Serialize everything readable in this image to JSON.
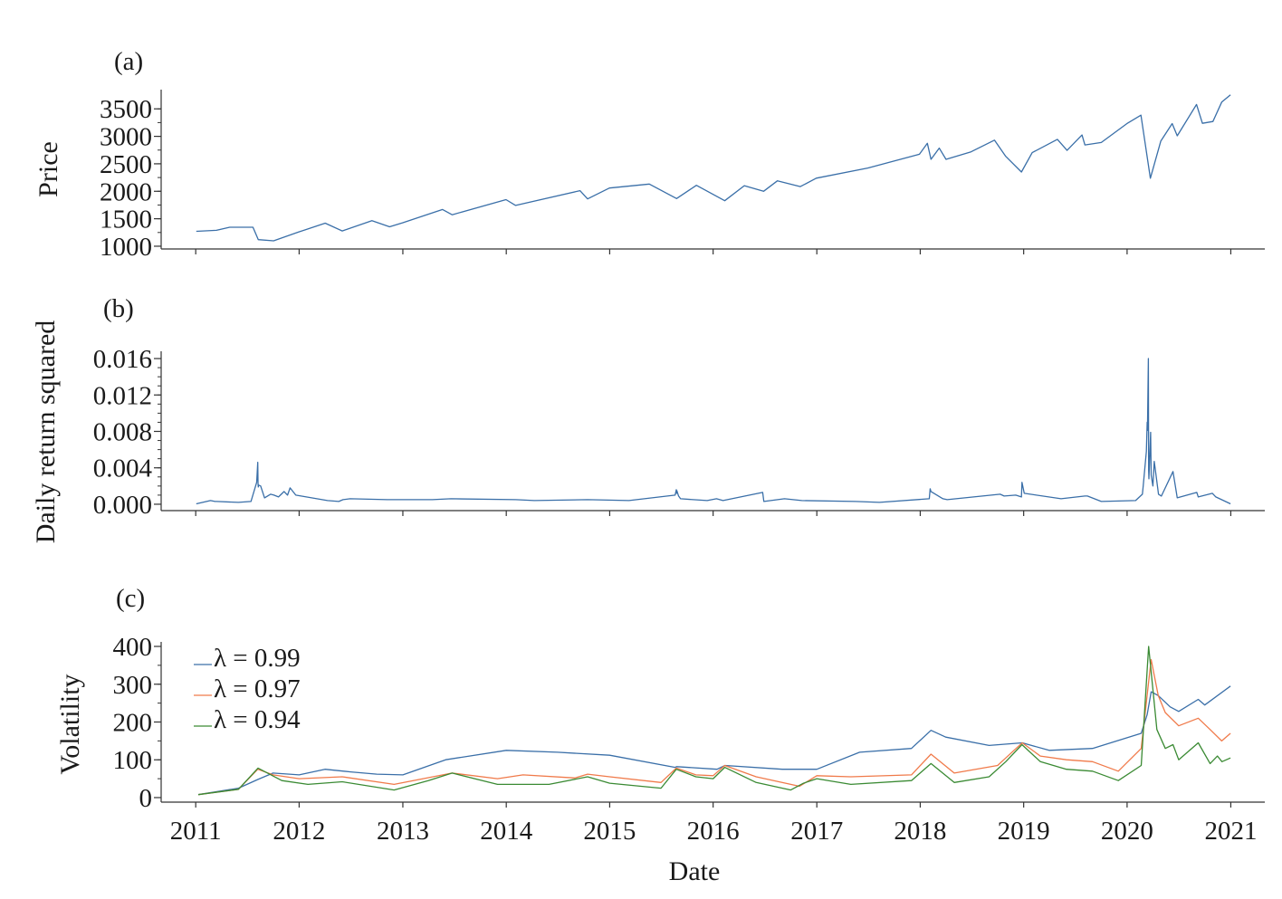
{
  "chart_data": [
    {
      "panel_label": "(a)",
      "type": "line",
      "title": "",
      "xlabel": "",
      "ylabel": "Price",
      "ylim": [
        950,
        3850
      ],
      "yticks": [
        "3500",
        "3000",
        "2500",
        "2000",
        "1500",
        "1000"
      ],
      "ytick_values": [
        3500,
        3000,
        2500,
        2000,
        1500,
        1000
      ],
      "grid": false,
      "series": [
        {
          "color": "#3a6fa8",
          "x": [
            "2011-01-03",
            "2011-03-15",
            "2011-05-01",
            "2011-07-22",
            "2011-08-10",
            "2011-10-03",
            "2011-12-30",
            "2012-04-02",
            "2012-06-01",
            "2012-09-14",
            "2012-11-15",
            "2012-12-31",
            "2013-05-21",
            "2013-06-24",
            "2013-12-31",
            "2014-02-03",
            "2014-09-18",
            "2014-10-15",
            "2014-12-31",
            "2015-05-21",
            "2015-08-25",
            "2015-11-03",
            "2016-02-11",
            "2016-04-20",
            "2016-06-27",
            "2016-08-15",
            "2016-11-04",
            "2016-12-30",
            "2017-06-30",
            "2017-12-29",
            "2018-01-26",
            "2018-02-08",
            "2018-03-09",
            "2018-04-02",
            "2018-06-29",
            "2018-09-20",
            "2018-10-29",
            "2018-12-24",
            "2019-01-31",
            "2019-04-30",
            "2019-06-03",
            "2019-07-26",
            "2019-08-05",
            "2019-10-02",
            "2019-12-31",
            "2020-02-19",
            "2020-03-23",
            "2020-04-29",
            "2020-06-08",
            "2020-06-26",
            "2020-09-02",
            "2020-09-23",
            "2020-10-30",
            "2020-11-30",
            "2020-12-31"
          ],
          "y": [
            1272,
            1290,
            1345,
            1345,
            1120,
            1099,
            1258,
            1419,
            1278,
            1466,
            1353,
            1426,
            1669,
            1573,
            1848,
            1742,
            2011,
            1862,
            2059,
            2131,
            1867,
            2109,
            1829,
            2102,
            2000,
            2190,
            2085,
            2239,
            2423,
            2674,
            2873,
            2581,
            2786,
            2581,
            2718,
            2930,
            2641,
            2351,
            2704,
            2946,
            2744,
            3025,
            2844,
            2887,
            3231,
            3386,
            2237,
            2912,
            3232,
            3009,
            3580,
            3237,
            3270,
            3622,
            3756
          ]
        }
      ]
    },
    {
      "panel_label": "(b)",
      "type": "line",
      "title": "",
      "xlabel": "",
      "ylabel": "Daily return squared",
      "ylim": [
        -0.0007,
        0.0168
      ],
      "yticks": [
        "0.016",
        "0.012",
        "0.008",
        "0.004",
        "0.000"
      ],
      "ytick_values": [
        0.016,
        0.012,
        0.008,
        0.004,
        0.0
      ],
      "grid": false,
      "series": [
        {
          "color": "#3a6fa8",
          "x": [
            "2011-01-03",
            "2011-02-22",
            "2011-03-10",
            "2011-03-16",
            "2011-06-01",
            "2011-07-15",
            "2011-08-04",
            "2011-08-08",
            "2011-08-09",
            "2011-08-10",
            "2011-08-11",
            "2011-08-18",
            "2011-09-01",
            "2011-09-22",
            "2011-10-04",
            "2011-10-20",
            "2011-11-09",
            "2011-11-21",
            "2011-11-30",
            "2011-12-20",
            "2012-04-10",
            "2012-05-20",
            "2012-06-04",
            "2012-06-29",
            "2012-11-07",
            "2013-04-15",
            "2013-06-20",
            "2014-02-03",
            "2014-04-10",
            "2014-10-15",
            "2015-03-10",
            "2015-08-20",
            "2015-08-24",
            "2015-08-25",
            "2015-08-26",
            "2015-09-01",
            "2015-09-08",
            "2015-12-11",
            "2016-01-13",
            "2016-02-05",
            "2016-06-24",
            "2016-06-28",
            "2016-09-09",
            "2016-11-09",
            "2017-05-17",
            "2017-08-10",
            "2018-02-02",
            "2018-02-05",
            "2018-02-08",
            "2018-03-22",
            "2018-04-06",
            "2018-10-10",
            "2018-10-24",
            "2018-12-04",
            "2018-12-24",
            "2018-12-26",
            "2019-01-03",
            "2019-05-13",
            "2019-08-05",
            "2019-08-14",
            "2019-10-02",
            "2020-01-31",
            "2020-02-24",
            "2020-02-27",
            "2020-03-09",
            "2020-03-12",
            "2020-03-13",
            "2020-03-16",
            "2020-03-17",
            "2020-03-18",
            "2020-03-24",
            "2020-03-26",
            "2020-04-01",
            "2020-04-06",
            "2020-04-21",
            "2020-05-01",
            "2020-06-11",
            "2020-06-26",
            "2020-09-03",
            "2020-09-08",
            "2020-10-28",
            "2020-11-09",
            "2020-12-31"
          ],
          "y": [
            5e-05,
            0.0004,
            0.0003,
            0.0003,
            0.0002,
            0.0003,
            0.0024,
            0.0046,
            0.0023,
            0.0019,
            0.0021,
            0.002,
            0.0007,
            0.0011,
            0.001,
            0.0008,
            0.0014,
            0.001,
            0.0018,
            0.001,
            0.0004,
            0.0003,
            0.0005,
            0.0006,
            0.0005,
            0.0005,
            0.0006,
            0.0005,
            0.0004,
            0.0005,
            0.0004,
            0.001,
            0.0016,
            0.0012,
            0.0015,
            0.0009,
            0.0006,
            0.0004,
            0.0006,
            0.0004,
            0.0013,
            0.0003,
            0.0006,
            0.0004,
            0.0003,
            0.0002,
            0.0006,
            0.0017,
            0.0014,
            0.0006,
            0.0005,
            0.0011,
            0.0009,
            0.001,
            0.0008,
            0.0024,
            0.0012,
            0.0006,
            0.0009,
            0.0009,
            0.0003,
            0.0004,
            0.0011,
            0.002,
            0.0058,
            0.009,
            0.0081,
            0.016,
            0.0037,
            0.0028,
            0.0079,
            0.0032,
            0.002,
            0.0047,
            0.0011,
            0.0009,
            0.0036,
            0.0007,
            0.0013,
            0.0008,
            0.0012,
            0.0008,
            5e-05
          ]
        }
      ]
    },
    {
      "panel_label": "(c)",
      "type": "line",
      "title": "",
      "xlabel": "Date",
      "ylabel": "Volatility",
      "ylim": [
        -12,
        412
      ],
      "yticks": [
        "400",
        "300",
        "200",
        "100",
        "0"
      ],
      "ytick_values": [
        400,
        300,
        200,
        100,
        0
      ],
      "xticks": [
        "2011",
        "2012",
        "2013",
        "2014",
        "2015",
        "2016",
        "2017",
        "2018",
        "2019",
        "2020",
        "2021"
      ],
      "xlim": [
        "2010-09-01",
        "2021-05-01"
      ],
      "grid": false,
      "legend_position": "top-left",
      "series": [
        {
          "name": "λ = 0.99",
          "color": "#3a6fa8",
          "x": [
            "2011-01-10",
            "2011-06-01",
            "2011-08-08",
            "2011-10-01",
            "2012-01-01",
            "2012-04-01",
            "2012-07-01",
            "2012-10-01",
            "2013-01-01",
            "2013-06-01",
            "2014-01-01",
            "2014-07-01",
            "2015-01-01",
            "2015-08-20",
            "2015-08-25",
            "2016-01-15",
            "2016-02-12",
            "2016-09-01",
            "2017-01-01",
            "2017-06-01",
            "2017-12-01",
            "2018-02-08",
            "2018-04-01",
            "2018-09-01",
            "2018-12-27",
            "2019-04-01",
            "2019-09-01",
            "2020-02-20",
            "2020-03-12",
            "2020-03-26",
            "2020-04-20",
            "2020-06-01",
            "2020-07-01",
            "2020-09-08",
            "2020-10-01",
            "2020-12-31"
          ],
          "y": [
            8,
            25,
            48,
            65,
            60,
            75,
            68,
            62,
            60,
            100,
            125,
            120,
            112,
            80,
            82,
            75,
            85,
            75,
            75,
            120,
            130,
            178,
            160,
            138,
            145,
            125,
            130,
            170,
            220,
            280,
            270,
            240,
            228,
            260,
            245,
            295
          ]
        },
        {
          "name": "λ = 0.97",
          "color": "#f07a4a",
          "x": [
            "2011-01-10",
            "2011-06-01",
            "2011-08-08",
            "2011-10-01",
            "2012-01-01",
            "2012-06-01",
            "2012-12-01",
            "2013-06-24",
            "2013-12-01",
            "2014-03-01",
            "2014-09-01",
            "2014-10-15",
            "2015-01-01",
            "2015-07-01",
            "2015-08-24",
            "2015-11-01",
            "2016-01-01",
            "2016-02-11",
            "2016-06-01",
            "2016-11-01",
            "2017-01-01",
            "2017-05-01",
            "2017-12-01",
            "2018-02-08",
            "2018-05-01",
            "2018-10-01",
            "2018-10-30",
            "2018-12-27",
            "2019-03-01",
            "2019-06-01",
            "2019-09-01",
            "2019-12-01",
            "2020-02-20",
            "2020-03-16",
            "2020-03-26",
            "2020-04-20",
            "2020-05-15",
            "2020-07-01",
            "2020-09-08",
            "2020-10-20",
            "2020-11-30",
            "2020-12-31"
          ],
          "y": [
            8,
            22,
            75,
            60,
            50,
            55,
            35,
            65,
            50,
            60,
            52,
            62,
            55,
            40,
            78,
            60,
            58,
            85,
            55,
            30,
            58,
            55,
            60,
            115,
            65,
            85,
            105,
            145,
            110,
            100,
            95,
            70,
            130,
            300,
            365,
            270,
            225,
            190,
            210,
            180,
            150,
            170
          ]
        },
        {
          "name": "λ = 0.94",
          "color": "#3a8a33",
          "x": [
            "2011-01-10",
            "2011-06-01",
            "2011-08-09",
            "2011-11-01",
            "2012-02-01",
            "2012-06-01",
            "2012-12-01",
            "2013-04-01",
            "2013-06-24",
            "2013-12-01",
            "2014-06-01",
            "2014-10-15",
            "2015-01-01",
            "2015-07-01",
            "2015-08-24",
            "2015-11-01",
            "2016-01-01",
            "2016-02-11",
            "2016-06-01",
            "2016-10-01",
            "2016-11-15",
            "2017-01-01",
            "2017-05-01",
            "2017-12-01",
            "2018-02-08",
            "2018-05-01",
            "2018-09-01",
            "2018-10-30",
            "2018-12-26",
            "2019-03-01",
            "2019-06-01",
            "2019-09-01",
            "2019-12-01",
            "2020-02-20",
            "2020-03-17",
            "2020-04-15",
            "2020-05-15",
            "2020-06-11",
            "2020-07-01",
            "2020-09-08",
            "2020-10-20",
            "2020-11-15",
            "2020-12-01",
            "2020-12-31"
          ],
          "y": [
            8,
            22,
            78,
            45,
            35,
            42,
            20,
            45,
            65,
            35,
            35,
            55,
            38,
            25,
            75,
            55,
            50,
            80,
            40,
            20,
            38,
            50,
            35,
            45,
            90,
            40,
            55,
            95,
            140,
            95,
            75,
            70,
            45,
            85,
            400,
            180,
            130,
            140,
            100,
            145,
            90,
            110,
            95,
            105
          ]
        }
      ]
    }
  ]
}
